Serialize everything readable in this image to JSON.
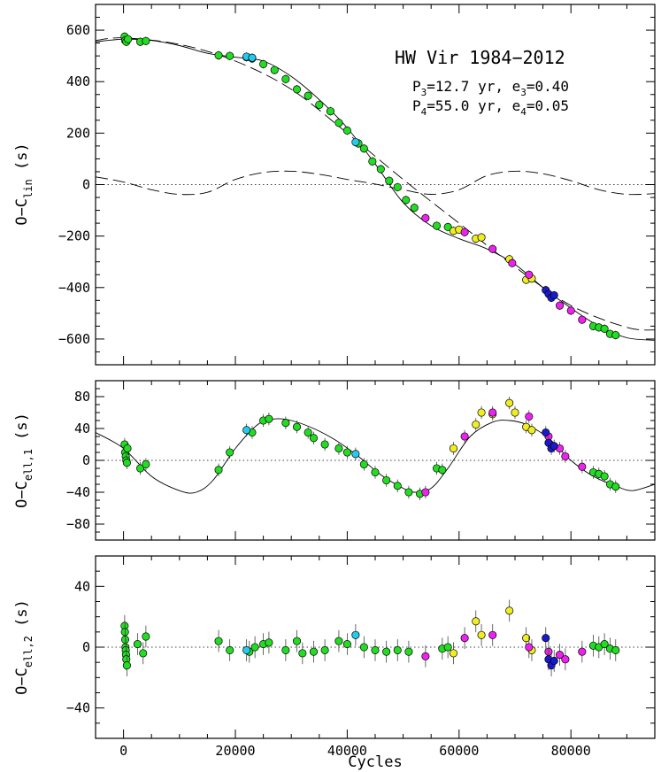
{
  "chart_data": {
    "type": "scatter",
    "title": "HW Vir 1984−2012",
    "annotations": {
      "title": "HW Vir 1984−2012",
      "p3_lead": "P",
      "p3_sub": "3",
      "p3_rest": "=12.7 yr, e",
      "e3_sub": "3",
      "e3_rest": "=0.40",
      "p4_lead": "P",
      "p4_sub": "4",
      "p4_rest": "=55.0 yr, e",
      "e4_sub": "4",
      "e4_rest": "=0.05"
    },
    "xlabel": "Cycles",
    "xlim": [
      -5000,
      95000
    ],
    "xticks": [
      0,
      20000,
      40000,
      60000,
      80000
    ],
    "xtick_labels": [
      "0",
      "20000",
      "40000",
      "60000",
      "80000"
    ],
    "colors": {
      "green": "#22dd22",
      "cyan": "#22ccee",
      "yellow": "#eeee22",
      "magenta": "#ee22ee",
      "blue": "#1a1acc"
    },
    "panels": [
      {
        "id": "top",
        "ylabel_main": "O−C",
        "ylabel_sub": "lin",
        "ylabel_unit": "(s)",
        "ylim": [
          -700,
          700
        ],
        "yticks": [
          -600,
          -400,
          -200,
          0,
          200,
          400,
          600
        ],
        "ytick_labels": [
          "−600",
          "−400",
          "−200",
          "0",
          "200",
          "400",
          "600"
        ],
        "model": {
          "x": [
            -5000,
            0,
            5000,
            10000,
            15000,
            20000,
            25000,
            30000,
            35000,
            40000,
            45000,
            50000,
            55000,
            60000,
            65000,
            70000,
            75000,
            80000,
            85000,
            90000,
            95000
          ],
          "y": [
            555,
            565,
            560,
            540,
            510,
            495,
            480,
            420,
            330,
            220,
            80,
            -70,
            -160,
            -210,
            -250,
            -310,
            -400,
            -480,
            -550,
            -595,
            -605
          ]
        },
        "dashed_outer": {
          "x": [
            -5000,
            0,
            10000,
            20000,
            30000,
            40000,
            50000,
            60000,
            70000,
            80000,
            90000,
            95000
          ],
          "y": [
            560,
            570,
            545,
            480,
            370,
            200,
            20,
            -150,
            -320,
            -470,
            -555,
            -565
          ]
        },
        "dashed_inner": {
          "x": [
            -5000,
            0,
            5000,
            10000,
            15000,
            20000,
            25000,
            30000,
            35000,
            40000,
            45000,
            50000,
            55000,
            60000,
            65000,
            70000,
            75000,
            80000,
            85000,
            90000,
            95000
          ],
          "y": [
            30,
            10,
            -20,
            -38,
            -30,
            20,
            47,
            52,
            40,
            20,
            2,
            -20,
            -38,
            -20,
            35,
            52,
            42,
            15,
            -20,
            -38,
            -35
          ]
        },
        "series": [
          {
            "name": "green",
            "color": "green",
            "points": [
              [
                200,
                575
              ],
              [
                300,
                560
              ],
              [
                500,
                555
              ],
              [
                800,
                565
              ],
              [
                3000,
                555
              ],
              [
                4000,
                558
              ],
              [
                17000,
                502
              ],
              [
                19000,
                500
              ],
              [
                22000,
                495
              ],
              [
                23000,
                490
              ],
              [
                25000,
                468
              ],
              [
                27000,
                445
              ],
              [
                29000,
                410
              ],
              [
                31000,
                370
              ],
              [
                33000,
                345
              ],
              [
                35000,
                310
              ],
              [
                37000,
                285
              ],
              [
                38500,
                240
              ],
              [
                40000,
                210
              ],
              [
                42000,
                160
              ],
              [
                43000,
                140
              ],
              [
                44500,
                90
              ],
              [
                46000,
                60
              ],
              [
                47500,
                15
              ],
              [
                49000,
                -10
              ],
              [
                50500,
                -60
              ],
              [
                52000,
                -90
              ],
              [
                56000,
                -160
              ],
              [
                58000,
                -165
              ],
              [
                84000,
                -550
              ],
              [
                85000,
                -555
              ],
              [
                86000,
                -560
              ],
              [
                87000,
                -580
              ],
              [
                88000,
                -585
              ]
            ]
          },
          {
            "name": "cyan",
            "color": "cyan",
            "points": [
              [
                22000,
                497
              ],
              [
                23000,
                493
              ],
              [
                41500,
                165
              ]
            ]
          },
          {
            "name": "yellow",
            "color": "yellow",
            "points": [
              [
                59000,
                -180
              ],
              [
                60000,
                -175
              ],
              [
                63000,
                -210
              ],
              [
                64000,
                -205
              ],
              [
                69000,
                -290
              ],
              [
                72000,
                -370
              ],
              [
                73000,
                -365
              ]
            ]
          },
          {
            "name": "magenta",
            "color": "magenta",
            "points": [
              [
                54000,
                -130
              ],
              [
                61000,
                -185
              ],
              [
                66000,
                -250
              ],
              [
                69500,
                -305
              ],
              [
                72500,
                -350
              ],
              [
                78000,
                -470
              ],
              [
                80000,
                -490
              ],
              [
                82000,
                -525
              ]
            ]
          },
          {
            "name": "blue",
            "color": "blue",
            "points": [
              [
                75500,
                -410
              ],
              [
                76000,
                -425
              ],
              [
                76500,
                -440
              ],
              [
                77000,
                -430
              ]
            ]
          }
        ]
      },
      {
        "id": "middle",
        "ylabel_main": "O−C",
        "ylabel_sub": "ell,1",
        "ylabel_unit": "(s)",
        "ylim": [
          -100,
          100
        ],
        "yticks": [
          -80,
          -40,
          0,
          40,
          80
        ],
        "ytick_labels": [
          "−80",
          "−40",
          "0",
          "40",
          "80"
        ],
        "model": {
          "x": [
            -5000,
            0,
            5000,
            10000,
            13000,
            16000,
            20000,
            24000,
            27000,
            30000,
            34000,
            38000,
            42000,
            46000,
            50000,
            52000,
            55000,
            58000,
            62000,
            66000,
            69000,
            72000,
            76000,
            80000,
            84000,
            88000,
            91000,
            95000
          ],
          "y": [
            35,
            15,
            -20,
            -38,
            -40,
            -25,
            15,
            45,
            52,
            50,
            40,
            25,
            5,
            -18,
            -35,
            -40,
            -35,
            -10,
            30,
            48,
            50,
            45,
            28,
            0,
            -20,
            -32,
            -38,
            -30
          ]
        },
        "series": [
          {
            "name": "green",
            "color": "green",
            "points": [
              [
                200,
                20
              ],
              [
                300,
                10
              ],
              [
                400,
                5
              ],
              [
                500,
                0
              ],
              [
                600,
                -3
              ],
              [
                700,
                15
              ],
              [
                3000,
                -10
              ],
              [
                4000,
                -5
              ],
              [
                17000,
                -12
              ],
              [
                19000,
                10
              ],
              [
                23000,
                35
              ],
              [
                25000,
                50
              ],
              [
                26000,
                52
              ],
              [
                29000,
                47
              ],
              [
                31000,
                42
              ],
              [
                33000,
                35
              ],
              [
                34000,
                28
              ],
              [
                36000,
                20
              ],
              [
                38500,
                15
              ],
              [
                40000,
                10
              ],
              [
                43000,
                -5
              ],
              [
                45000,
                -15
              ],
              [
                47000,
                -25
              ],
              [
                49000,
                -32
              ],
              [
                51000,
                -40
              ],
              [
                53000,
                -42
              ],
              [
                56000,
                -10
              ],
              [
                57000,
                -12
              ],
              [
                84000,
                -15
              ],
              [
                85000,
                -17
              ],
              [
                86000,
                -20
              ],
              [
                87000,
                -30
              ],
              [
                88000,
                -33
              ]
            ]
          },
          {
            "name": "cyan",
            "color": "cyan",
            "points": [
              [
                22000,
                38
              ],
              [
                41500,
                8
              ]
            ]
          },
          {
            "name": "yellow",
            "color": "yellow",
            "points": [
              [
                59000,
                15
              ],
              [
                63000,
                45
              ],
              [
                64000,
                60
              ],
              [
                66000,
                58
              ],
              [
                69000,
                72
              ],
              [
                70000,
                60
              ],
              [
                72000,
                42
              ],
              [
                73000,
                38
              ]
            ]
          },
          {
            "name": "magenta",
            "color": "magenta",
            "points": [
              [
                54000,
                -40
              ],
              [
                61000,
                30
              ],
              [
                66000,
                60
              ],
              [
                72500,
                55
              ],
              [
                76000,
                30
              ],
              [
                78000,
                15
              ],
              [
                79000,
                5
              ],
              [
                82000,
                -8
              ]
            ]
          },
          {
            "name": "blue",
            "color": "blue",
            "points": [
              [
                75500,
                35
              ],
              [
                76000,
                22
              ],
              [
                76500,
                15
              ],
              [
                77000,
                18
              ]
            ]
          }
        ]
      },
      {
        "id": "bottom",
        "ylabel_main": "O−C",
        "ylabel_sub": "ell,2",
        "ylabel_unit": "(s)",
        "ylim": [
          -60,
          60
        ],
        "yticks": [
          -40,
          0,
          40
        ],
        "ytick_labels": [
          "−40",
          "0",
          "40"
        ],
        "series": [
          {
            "name": "green",
            "color": "green",
            "points": [
              [
                200,
                14
              ],
              [
                250,
                10
              ],
              [
                300,
                5
              ],
              [
                350,
                0
              ],
              [
                400,
                -2
              ],
              [
                450,
                -5
              ],
              [
                500,
                -8
              ],
              [
                600,
                -12
              ],
              [
                2500,
                2
              ],
              [
                3500,
                -4
              ],
              [
                4000,
                7
              ],
              [
                17000,
                4
              ],
              [
                19000,
                -2
              ],
              [
                22500,
                -3
              ],
              [
                23500,
                0
              ],
              [
                25000,
                2
              ],
              [
                26000,
                3
              ],
              [
                29000,
                -2
              ],
              [
                31000,
                4
              ],
              [
                32000,
                -4
              ],
              [
                34000,
                -3
              ],
              [
                36000,
                -2
              ],
              [
                38500,
                4
              ],
              [
                40000,
                2
              ],
              [
                43000,
                0
              ],
              [
                45000,
                -2
              ],
              [
                47000,
                -3
              ],
              [
                49000,
                -2
              ],
              [
                51000,
                -3
              ],
              [
                57000,
                -1
              ],
              [
                58000,
                0
              ],
              [
                84000,
                1
              ],
              [
                85000,
                0
              ],
              [
                86000,
                2
              ],
              [
                87000,
                -1
              ],
              [
                88000,
                -2
              ]
            ]
          },
          {
            "name": "cyan",
            "color": "cyan",
            "points": [
              [
                22000,
                -2
              ],
              [
                41500,
                8
              ]
            ]
          },
          {
            "name": "yellow",
            "color": "yellow",
            "points": [
              [
                59000,
                -4
              ],
              [
                63000,
                17
              ],
              [
                64000,
                8
              ],
              [
                69000,
                24
              ],
              [
                72000,
                6
              ],
              [
                73000,
                -2
              ]
            ]
          },
          {
            "name": "magenta",
            "color": "magenta",
            "points": [
              [
                54000,
                -6
              ],
              [
                61000,
                6
              ],
              [
                66000,
                8
              ],
              [
                72500,
                0
              ],
              [
                76000,
                -3
              ],
              [
                78000,
                -5
              ],
              [
                79000,
                -8
              ],
              [
                82000,
                -3
              ]
            ]
          },
          {
            "name": "blue",
            "color": "blue",
            "points": [
              [
                75500,
                6
              ],
              [
                76000,
                -8
              ],
              [
                76500,
                -12
              ],
              [
                77000,
                -9
              ]
            ]
          }
        ]
      }
    ]
  }
}
